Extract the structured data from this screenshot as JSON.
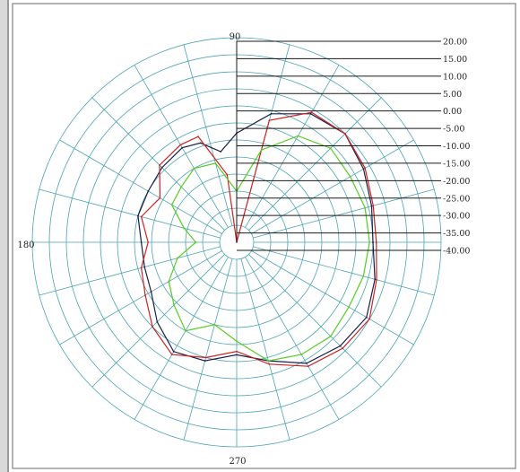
{
  "chart_data": {
    "type": "polar-line",
    "title": "",
    "angle_labels": [
      {
        "deg": 90,
        "text": "90"
      },
      {
        "deg": 180,
        "text": "180"
      },
      {
        "deg": 270,
        "text": "270"
      }
    ],
    "radial_ticks": [
      "20.00",
      "15.00",
      "10.00",
      "5.00",
      "0.00",
      "-5.00",
      "-10.00",
      "-15.00",
      "-20.00",
      "-25.00",
      "-30.00",
      "-35.00",
      "-40.00"
    ],
    "rlim": [
      -40,
      20
    ],
    "grid": true,
    "angle_grid_step_deg": 15,
    "series": [
      {
        "color": "#1a1f4a",
        "points": [
          [
            0,
            0
          ],
          [
            15,
            1
          ],
          [
            30,
            3
          ],
          [
            45,
            5
          ],
          [
            60,
            3.5
          ],
          [
            75,
            -1
          ],
          [
            90,
            -8
          ],
          [
            100,
            -13
          ],
          [
            110,
            -9
          ],
          [
            120,
            -8
          ],
          [
            135,
            -9
          ],
          [
            150,
            -10
          ],
          [
            165,
            -10
          ],
          [
            180,
            -12
          ],
          [
            195,
            -12
          ],
          [
            210,
            -11
          ],
          [
            225,
            -7
          ],
          [
            240,
            -3
          ],
          [
            255,
            -4
          ],
          [
            270,
            -7
          ],
          [
            285,
            -4
          ],
          [
            300,
            1
          ],
          [
            315,
            3
          ],
          [
            330,
            4
          ],
          [
            345,
            2
          ],
          [
            360,
            0
          ]
        ]
      },
      {
        "color": "#cc2222",
        "points": [
          [
            0,
            1
          ],
          [
            15,
            1.5
          ],
          [
            30,
            3.5
          ],
          [
            45,
            5
          ],
          [
            60,
            4
          ],
          [
            75,
            -3
          ],
          [
            90,
            -40
          ],
          [
            98,
            -20
          ],
          [
            110,
            -7
          ],
          [
            120,
            -7
          ],
          [
            135,
            -8
          ],
          [
            150,
            -14
          ],
          [
            165,
            -11
          ],
          [
            180,
            -14
          ],
          [
            195,
            -11
          ],
          [
            210,
            -9
          ],
          [
            225,
            -5
          ],
          [
            240,
            -2
          ],
          [
            255,
            -5
          ],
          [
            270,
            -8
          ],
          [
            285,
            -3
          ],
          [
            300,
            2
          ],
          [
            315,
            4
          ],
          [
            330,
            5
          ],
          [
            345,
            2.5
          ],
          [
            360,
            1
          ]
        ]
      },
      {
        "color": "#55cc22",
        "points": [
          [
            0,
            -1
          ],
          [
            15,
            -1
          ],
          [
            30,
            -1.5
          ],
          [
            45,
            -1
          ],
          [
            60,
            -4
          ],
          [
            75,
            -12
          ],
          [
            90,
            -25
          ],
          [
            105,
            -16
          ],
          [
            120,
            -15
          ],
          [
            135,
            -17
          ],
          [
            150,
            -18
          ],
          [
            165,
            -24
          ],
          [
            180,
            -28
          ],
          [
            195,
            -22
          ],
          [
            210,
            -17
          ],
          [
            225,
            -14
          ],
          [
            240,
            -10
          ],
          [
            255,
            -15
          ],
          [
            270,
            -11
          ],
          [
            285,
            -4
          ],
          [
            300,
            -2
          ],
          [
            315,
            -1
          ],
          [
            330,
            -2
          ],
          [
            345,
            -1.5
          ],
          [
            360,
            -1
          ]
        ]
      }
    ]
  }
}
